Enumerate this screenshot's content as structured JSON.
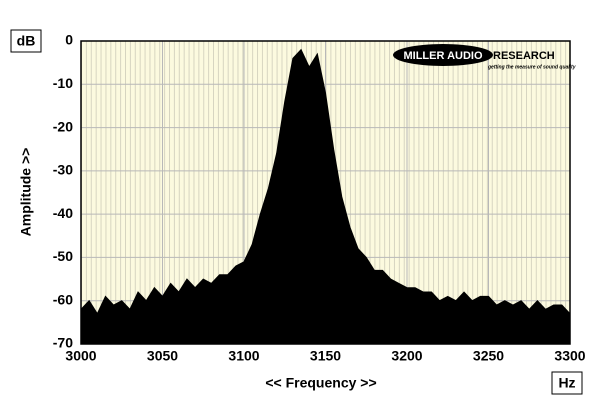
{
  "chart_data": {
    "type": "area",
    "y_unit": "dB",
    "x_unit": "Hz",
    "ylabel": "Amplitude >>",
    "xlabel": "<< Frequency >>",
    "logo": {
      "name": "MILLER AUDIO",
      "suffix": "RESEARCH",
      "tagline": "getting the measure of sound quality"
    },
    "x": [
      3000,
      3005,
      3010,
      3015,
      3020,
      3025,
      3030,
      3035,
      3040,
      3045,
      3050,
      3055,
      3060,
      3065,
      3070,
      3075,
      3080,
      3085,
      3090,
      3095,
      3100,
      3105,
      3110,
      3115,
      3120,
      3125,
      3130,
      3135,
      3140,
      3145,
      3150,
      3155,
      3160,
      3165,
      3170,
      3175,
      3180,
      3185,
      3190,
      3195,
      3200,
      3205,
      3210,
      3215,
      3220,
      3225,
      3230,
      3235,
      3240,
      3245,
      3250,
      3255,
      3260,
      3265,
      3270,
      3275,
      3280,
      3285,
      3290,
      3295,
      3300
    ],
    "values": [
      -62,
      -60,
      -63,
      -59,
      -61,
      -60,
      -62,
      -58,
      -60,
      -57,
      -59,
      -56,
      -58,
      -55,
      -57,
      -55,
      -56,
      -54,
      -54,
      -52,
      -51,
      -47,
      -40,
      -34,
      -26,
      -14,
      -4,
      -2,
      -6,
      -3,
      -12,
      -25,
      -36,
      -43,
      -48,
      -50,
      -53,
      -53,
      -55,
      -56,
      -57,
      -57,
      -58,
      -58,
      -60,
      -59,
      -60,
      -58,
      -60,
      -59,
      -59,
      -61,
      -60,
      -61,
      -60,
      -62,
      -60,
      -62,
      -61,
      -61,
      -63
    ],
    "color": "#000000",
    "xlim": [
      3000,
      3300
    ],
    "ylim": [
      -70,
      0
    ],
    "xticks": [
      3000,
      3050,
      3100,
      3150,
      3200,
      3250,
      3300
    ],
    "yticks": [
      0,
      -10,
      -20,
      -30,
      -40,
      -50,
      -60,
      -70
    ],
    "grid": true
  }
}
